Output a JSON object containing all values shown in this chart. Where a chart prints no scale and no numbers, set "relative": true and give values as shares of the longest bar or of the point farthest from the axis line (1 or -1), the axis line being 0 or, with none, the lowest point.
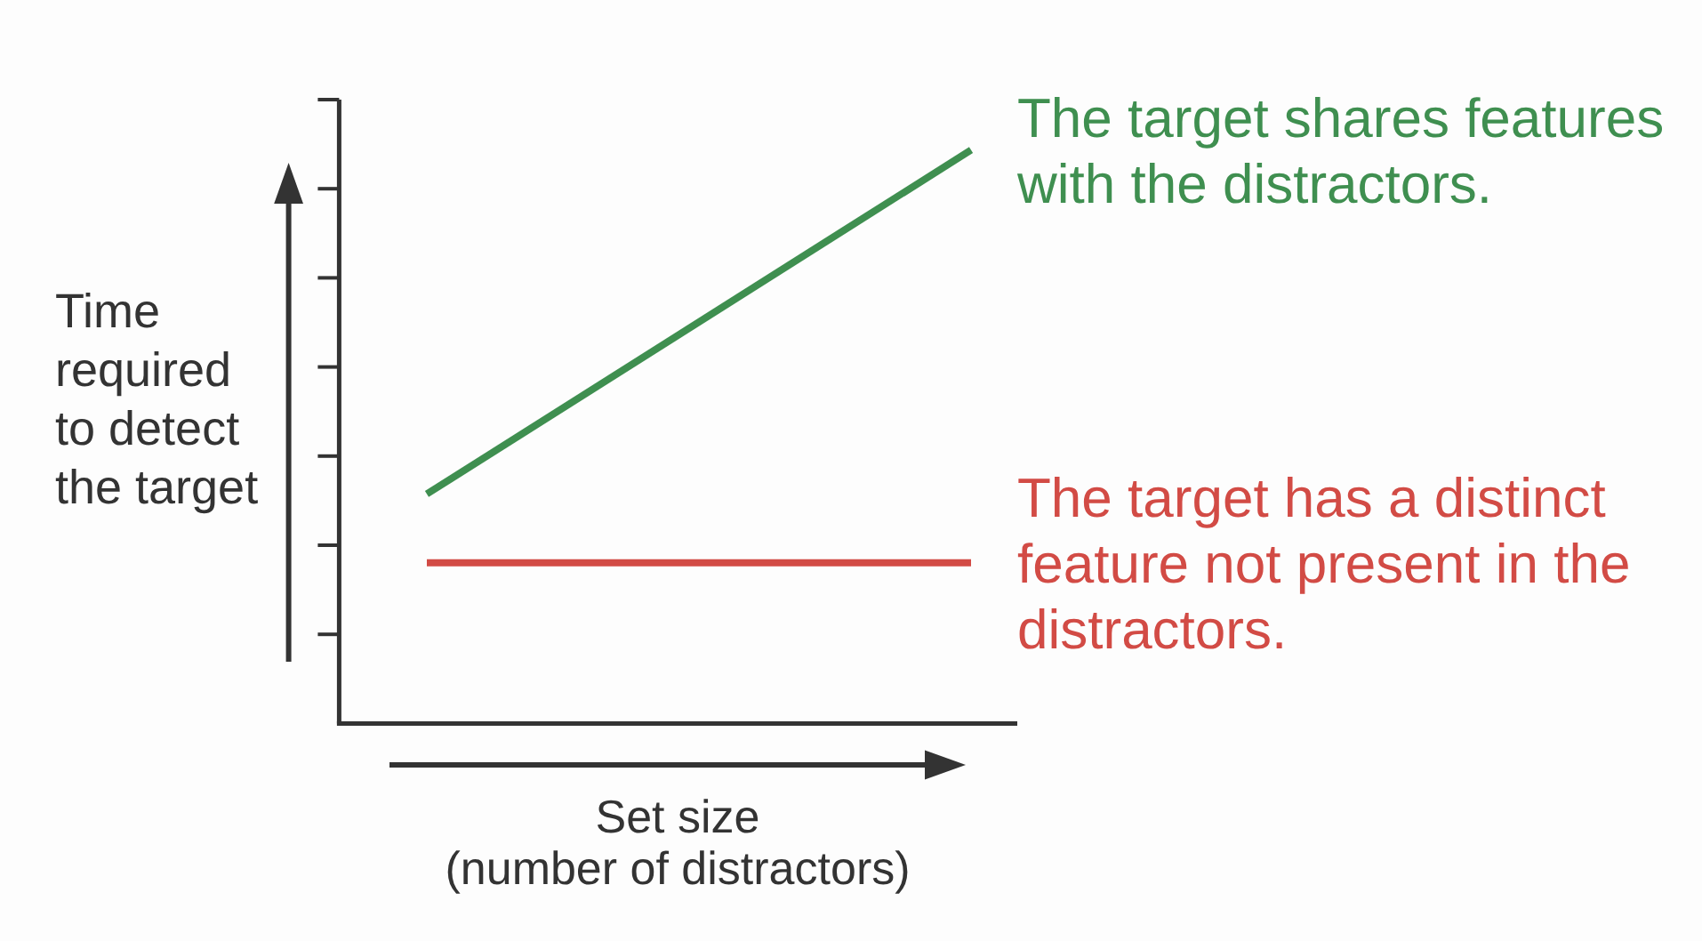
{
  "chart_data": {
    "type": "line",
    "relative": true,
    "categories": [
      null,
      null
    ],
    "xlabel": "Set size\n(number of distractors)",
    "ylabel": "Time required to detect the target",
    "series": [
      {
        "name": "The target shares features with the distractors.",
        "color": "#3f8f50",
        "values": [
          0.4,
          1
        ]
      },
      {
        "name": "The target has a distinct feature not present in the distractors.",
        "color": "#d24b45",
        "values": [
          0.28,
          0.28
        ]
      }
    ]
  }
}
